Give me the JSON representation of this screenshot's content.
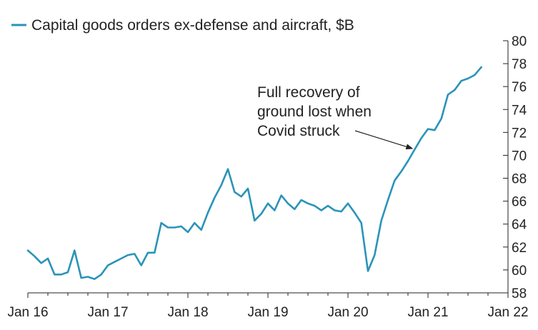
{
  "chart_data": {
    "type": "line",
    "title": "",
    "xlabel": "",
    "ylabel": "",
    "legend": {
      "placement": "top-left"
    },
    "series": [
      {
        "name": "Capital goods orders ex-defense and aircraft, $B",
        "color": "#2b93b8",
        "x": [
          "2016-01",
          "2016-02",
          "2016-03",
          "2016-04",
          "2016-05",
          "2016-06",
          "2016-07",
          "2016-08",
          "2016-09",
          "2016-10",
          "2016-11",
          "2016-12",
          "2017-01",
          "2017-02",
          "2017-03",
          "2017-04",
          "2017-05",
          "2017-06",
          "2017-07",
          "2017-08",
          "2017-09",
          "2017-10",
          "2017-11",
          "2017-12",
          "2018-01",
          "2018-02",
          "2018-03",
          "2018-04",
          "2018-05",
          "2018-06",
          "2018-07",
          "2018-08",
          "2018-09",
          "2018-10",
          "2018-11",
          "2018-12",
          "2019-01",
          "2019-02",
          "2019-03",
          "2019-04",
          "2019-05",
          "2019-06",
          "2019-07",
          "2019-08",
          "2019-09",
          "2019-10",
          "2019-11",
          "2019-12",
          "2020-01",
          "2020-02",
          "2020-03",
          "2020-04",
          "2020-05",
          "2020-06",
          "2020-07",
          "2020-08",
          "2020-09",
          "2020-10",
          "2020-11",
          "2020-12",
          "2021-01",
          "2021-02",
          "2021-03",
          "2021-04",
          "2021-05",
          "2021-06",
          "2021-07",
          "2021-08",
          "2021-09",
          "2021-10"
        ],
        "values": [
          61.7,
          61.2,
          60.6,
          61.0,
          59.6,
          59.6,
          59.8,
          61.7,
          59.3,
          59.4,
          59.2,
          59.6,
          60.4,
          60.7,
          61.0,
          61.3,
          61.4,
          60.4,
          61.5,
          61.5,
          64.1,
          63.7,
          63.7,
          63.8,
          63.3,
          64.1,
          63.5,
          65.0,
          66.3,
          67.4,
          68.8,
          66.8,
          66.4,
          67.1,
          64.3,
          64.9,
          65.8,
          65.2,
          66.5,
          65.8,
          65.3,
          66.1,
          65.8,
          65.6,
          65.2,
          65.6,
          65.2,
          65.1,
          65.8,
          65.0,
          64.1,
          59.9,
          61.3,
          64.3,
          66.1,
          67.8,
          68.6,
          69.5,
          70.5,
          71.5,
          72.3,
          72.2,
          73.2,
          75.3,
          75.7,
          76.5,
          76.7,
          77.0,
          77.7,
          null
        ]
      }
    ],
    "x_ticks": [
      "Jan 16",
      "Jan 17",
      "Jan 18",
      "Jan 19",
      "Jan 20",
      "Jan 21",
      "Jan 22"
    ],
    "x_range": [
      "2016-01",
      "2022-01"
    ],
    "y_ticks": [
      58,
      60,
      62,
      64,
      66,
      68,
      70,
      72,
      74,
      76,
      78,
      80
    ],
    "ylim": [
      58,
      80
    ],
    "y_axis_side": "right",
    "grid": false,
    "annotation": {
      "lines": [
        "Full recovery of",
        "ground lost when",
        "Covid struck"
      ],
      "arrow_to": {
        "x": "2020-11",
        "y": 70.4
      }
    }
  }
}
